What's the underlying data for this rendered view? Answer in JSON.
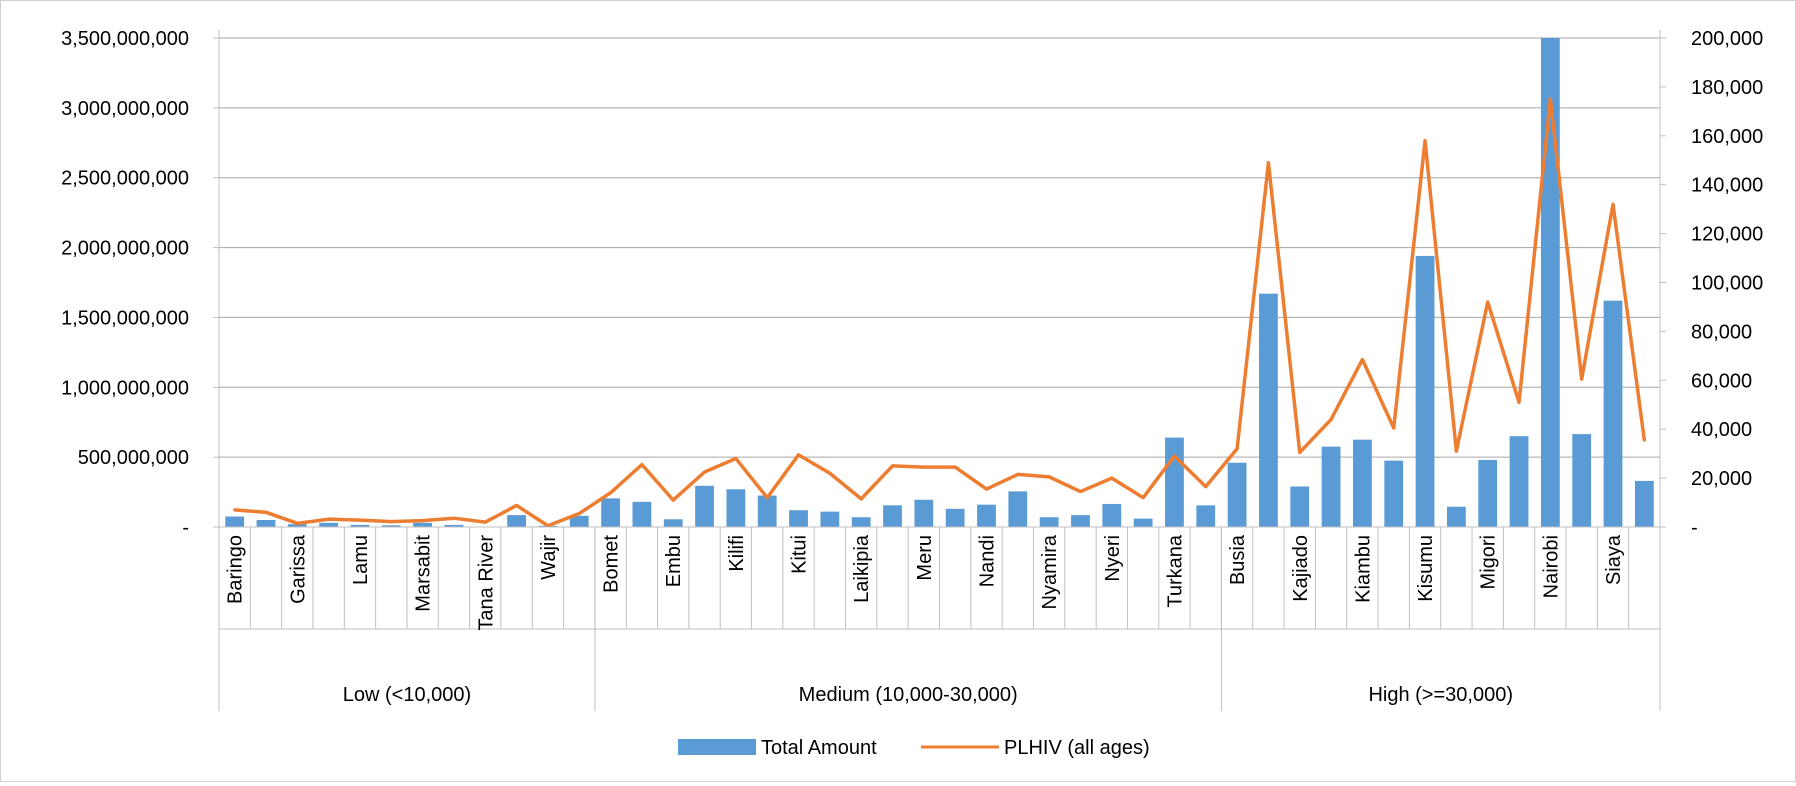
{
  "colors": {
    "bar": "#5b9bd5",
    "line": "#ed7d31",
    "grid": "#a6a6a6",
    "axis": "#bfbfbf",
    "text": "#000000"
  },
  "legend": {
    "bar_label": "Total Amount",
    "line_label": "PLHIV (all ages)"
  },
  "chart_data": {
    "type": "bar",
    "secondary_type": "line",
    "grid": true,
    "legend_position": "bottom",
    "title": "",
    "xlabel": "",
    "ylabel": "",
    "y_left_lim": [
      0,
      3500000000
    ],
    "y_left_ticks": [
      "-",
      "500,000,000",
      "1,000,000,000",
      "1,500,000,000",
      "2,000,000,000",
      "2,500,000,000",
      "3,000,000,000",
      "3,500,000,000"
    ],
    "y_right_lim": [
      0,
      200000
    ],
    "y_right_ticks": [
      "-",
      "20,000",
      "40,000",
      "60,000",
      "80,000",
      "100,000",
      "120,000",
      "140,000",
      "160,000",
      "180,000",
      "200,000"
    ],
    "groups": [
      {
        "label": "Low (<10,000)",
        "count": 12
      },
      {
        "label": "Medium (10,000-30,000)",
        "count": 20
      },
      {
        "label": "High (>=30,000)",
        "count": 14
      }
    ],
    "category_labels": [
      "Baringo",
      "",
      "Garissa",
      "",
      "Lamu",
      "",
      "Marsabit",
      "",
      "Tana River",
      "",
      "Wajir",
      "",
      "Bomet",
      "",
      "Embu",
      "",
      "Kilifi",
      "",
      "Kitui",
      "",
      "Laikipia",
      "",
      "Meru",
      "",
      "Nandi",
      "",
      "Nyamira",
      "",
      "Nyeri",
      "",
      "Turkana",
      "",
      "Busia",
      "",
      "Kajiado",
      "",
      "Kiambu",
      "",
      "Kisumu",
      "",
      "Migori",
      "",
      "Nairobi",
      "",
      "Siaya",
      ""
    ],
    "series": [
      {
        "name": "Total Amount",
        "type": "bar",
        "axis": "left",
        "values": [
          75000000,
          50000000,
          20000000,
          30000000,
          15000000,
          12000000,
          30000000,
          15000000,
          2000000,
          85000000,
          8000000,
          80000000,
          205000000,
          180000000,
          55000000,
          295000000,
          270000000,
          225000000,
          120000000,
          110000000,
          70000000,
          155000000,
          195000000,
          130000000,
          160000000,
          255000000,
          70000000,
          85000000,
          165000000,
          60000000,
          640000000,
          155000000,
          460000000,
          1670000000,
          290000000,
          575000000,
          625000000,
          475000000,
          1940000000,
          145000000,
          480000000,
          650000000,
          3500000000,
          665000000,
          1620000000,
          330000000
        ]
      },
      {
        "name": "PLHIV (all ages)",
        "type": "line",
        "axis": "right",
        "values": [
          7000,
          6000,
          1500,
          3200,
          2800,
          2200,
          2600,
          3600,
          2000,
          8800,
          500,
          5500,
          14000,
          25500,
          11000,
          22500,
          28000,
          12000,
          29500,
          22000,
          11500,
          25000,
          24500,
          24500,
          15500,
          21500,
          20500,
          14500,
          20000,
          12000,
          29000,
          16500,
          32000,
          149000,
          30500,
          44000,
          68500,
          40500,
          158000,
          31000,
          92000,
          51000,
          175000,
          60500,
          132000,
          35500
        ]
      }
    ]
  }
}
